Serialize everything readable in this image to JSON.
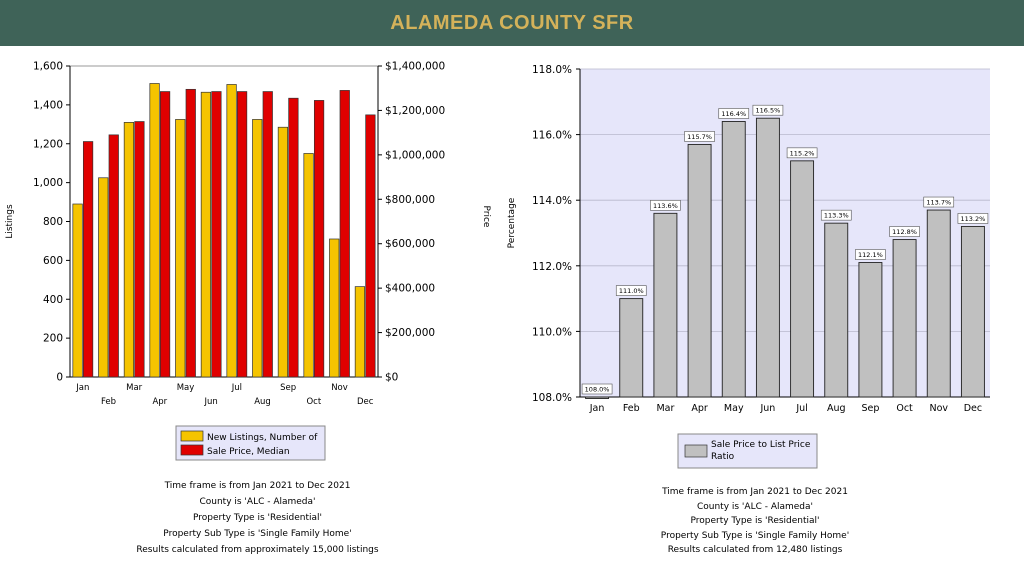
{
  "header": {
    "title": "ALAMEDA COUNTY SFR"
  },
  "colors": {
    "header_bg": "#3f6358",
    "header_text": "#d4b25a",
    "listings": "#f5c400",
    "price": "#e00000",
    "ratio_bar": "#c0c0c0",
    "plot_bg": "#e6e6fa"
  },
  "chart_data": [
    {
      "type": "bar",
      "categories": [
        "Jan",
        "Feb",
        "Mar",
        "Apr",
        "May",
        "Jun",
        "Jul",
        "Aug",
        "Sep",
        "Oct",
        "Nov",
        "Dec"
      ],
      "series": [
        {
          "name": "New Listings, Number of",
          "axis": "left",
          "values": [
            890,
            1025,
            1310,
            1510,
            1325,
            1465,
            1505,
            1325,
            1285,
            1150,
            710,
            465
          ]
        },
        {
          "name": "Sale Price, Median",
          "axis": "right",
          "values": [
            1060000,
            1090000,
            1150000,
            1285000,
            1295000,
            1285000,
            1285000,
            1285000,
            1255000,
            1245000,
            1290000,
            1180000
          ]
        }
      ],
      "ylabel": "Listings",
      "y2label": "Price",
      "ylim": [
        0,
        1600
      ],
      "y2lim": [
        0,
        1400000
      ],
      "yticks": [
        "0",
        "200",
        "400",
        "600",
        "800",
        "1,000",
        "1,200",
        "1,400",
        "1,600"
      ],
      "y2ticks": [
        "$0",
        "$200,000",
        "$400,000",
        "$600,000",
        "$800,000",
        "$1,000,000",
        "$1,200,000",
        "$1,400,000"
      ],
      "legend_position": "bottom",
      "grid": true,
      "notes": [
        "Time frame is from Jan 2021 to Dec 2021",
        "County is 'ALC - Alameda'",
        "Property Type is 'Residential'",
        "Property Sub Type is 'Single Family Home'",
        "Results calculated from approximately 15,000 listings"
      ]
    },
    {
      "type": "bar",
      "categories": [
        "Jan",
        "Feb",
        "Mar",
        "Apr",
        "May",
        "Jun",
        "Jul",
        "Aug",
        "Sep",
        "Oct",
        "Nov",
        "Dec"
      ],
      "series": [
        {
          "name": "Sale Price to List Price Ratio",
          "values": [
            108.0,
            111.0,
            113.6,
            115.7,
            116.4,
            116.5,
            115.2,
            113.3,
            112.1,
            112.8,
            113.7,
            113.2
          ]
        }
      ],
      "data_labels": [
        "108.0%",
        "111.0%",
        "113.6%",
        "115.7%",
        "116.4%",
        "116.5%",
        "115.2%",
        "113.3%",
        "112.1%",
        "112.8%",
        "113.7%",
        "113.2%"
      ],
      "ylabel": "Percentage",
      "ylim": [
        108,
        118
      ],
      "yticks": [
        "108.0%",
        "110.0%",
        "112.0%",
        "114.0%",
        "116.0%",
        "118.0%"
      ],
      "legend_position": "bottom",
      "grid": true,
      "notes": [
        "Time frame is from Jan 2021 to Dec 2021",
        "County is 'ALC - Alameda'",
        "Property Type is 'Residential'",
        "Property Sub Type is 'Single Family Home'",
        "Results calculated from 12,480 listings"
      ]
    }
  ]
}
